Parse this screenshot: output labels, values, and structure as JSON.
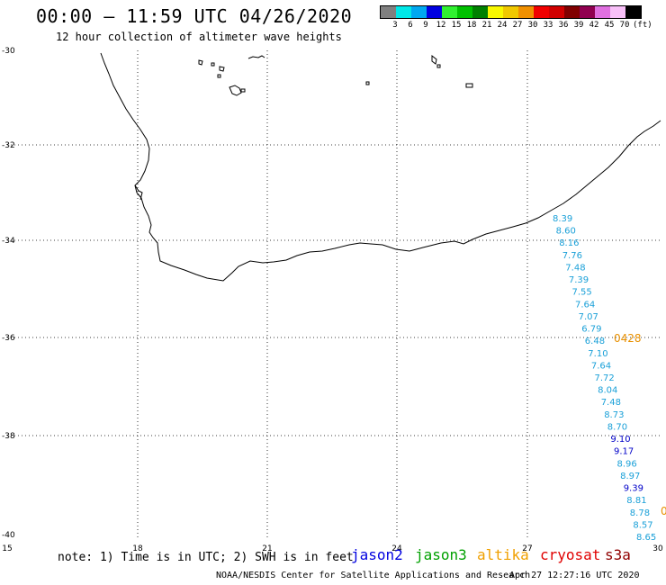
{
  "header": {
    "title": "00:00 – 11:59 UTC 04/26/2020",
    "subtitle": "12 hour collection of altimeter wave heights"
  },
  "legend": {
    "colors": [
      "#808080",
      "#00e8e8",
      "#00a8f0",
      "#0000e0",
      "#30f030",
      "#00c000",
      "#008000",
      "#f8f800",
      "#f0c800",
      "#f09000",
      "#f00000",
      "#d00000",
      "#800000",
      "#900050",
      "#e070e0",
      "#f8c0f8",
      "#000000"
    ],
    "labels": [
      "3",
      "6",
      "9",
      "12",
      "15",
      "18",
      "21",
      "24",
      "27",
      "30",
      "33",
      "36",
      "39",
      "42",
      "45",
      "70"
    ],
    "unit": "(ft)"
  },
  "axes": {
    "lon_labels": [
      "15",
      "18",
      "21",
      "24",
      "27",
      "30"
    ],
    "lat_labels": [
      "-30",
      "-32",
      "-34",
      "-36",
      "-38",
      "-40"
    ]
  },
  "observations": [
    {
      "value": "8.39",
      "color": "#1aa0d8"
    },
    {
      "value": "8.60",
      "color": "#1aa0d8"
    },
    {
      "value": "8.16",
      "color": "#1aa0d8"
    },
    {
      "value": "7.76",
      "color": "#1aa0d8"
    },
    {
      "value": "7.48",
      "color": "#1aa0d8"
    },
    {
      "value": "7.39",
      "color": "#1aa0d8"
    },
    {
      "value": "7.55",
      "color": "#1aa0d8"
    },
    {
      "value": "7.64",
      "color": "#1aa0d8"
    },
    {
      "value": "7.07",
      "color": "#1aa0d8"
    },
    {
      "value": "6.79",
      "color": "#1aa0d8"
    },
    {
      "value": "6.48",
      "color": "#1aa0d8"
    },
    {
      "value": "7.10",
      "color": "#1aa0d8"
    },
    {
      "value": "7.64",
      "color": "#1aa0d8"
    },
    {
      "value": "7.72",
      "color": "#1aa0d8"
    },
    {
      "value": "8.04",
      "color": "#1aa0d8"
    },
    {
      "value": "7.48",
      "color": "#1aa0d8"
    },
    {
      "value": "8.73",
      "color": "#1aa0d8"
    },
    {
      "value": "8.70",
      "color": "#1aa0d8"
    },
    {
      "value": "9.10",
      "color": "#0000c8"
    },
    {
      "value": "9.17",
      "color": "#0000c8"
    },
    {
      "value": "8.96",
      "color": "#1aa0d8"
    },
    {
      "value": "8.97",
      "color": "#1aa0d8"
    },
    {
      "value": "9.39",
      "color": "#0000c8"
    },
    {
      "value": "8.81",
      "color": "#1aa0d8"
    },
    {
      "value": "8.78",
      "color": "#1aa0d8"
    },
    {
      "value": "8.57",
      "color": "#1aa0d8"
    },
    {
      "value": "8.65",
      "color": "#1aa0d8"
    }
  ],
  "time_markers": [
    {
      "text": "0428",
      "color": "#e89000"
    },
    {
      "text": "0",
      "color": "#e89000"
    }
  ],
  "footer": {
    "note": "note: 1) Time is in UTC; 2) SWH is in feet",
    "satellites": [
      {
        "name": "jason2",
        "color": "#0000e0"
      },
      {
        "name": "jason3",
        "color": "#00a000"
      },
      {
        "name": "altika",
        "color": "#f0a000"
      },
      {
        "name": "cryosat",
        "color": "#e00000"
      },
      {
        "name": "s3a",
        "color": "#900000"
      }
    ],
    "credit": "NOAA/NESDIS Center for Satellite Applications and Research",
    "timestamp": "Apr 27 12:27:16 UTC 2020"
  }
}
